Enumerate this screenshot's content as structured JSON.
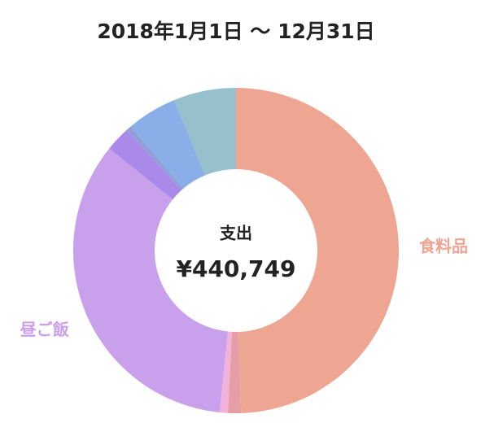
{
  "chart_data": {
    "type": "pie",
    "donut": true,
    "title": "2018年1月1日 〜 12月31日",
    "center_label": "支出",
    "center_value": "¥440,749",
    "categories": [
      "食料品",
      null,
      null,
      "昼ご飯",
      null,
      null,
      null,
      null
    ],
    "values": [
      49.5,
      1.3,
      0.8,
      34.2,
      2.5,
      0.5,
      5,
      6.2
    ],
    "colors": [
      "#eea693",
      "#e69ea6",
      "#f2b2da",
      "#c9a0ec",
      "#a98ae8",
      "#8f9fd8",
      "#8aaee8",
      "#96c0cc"
    ]
  }
}
